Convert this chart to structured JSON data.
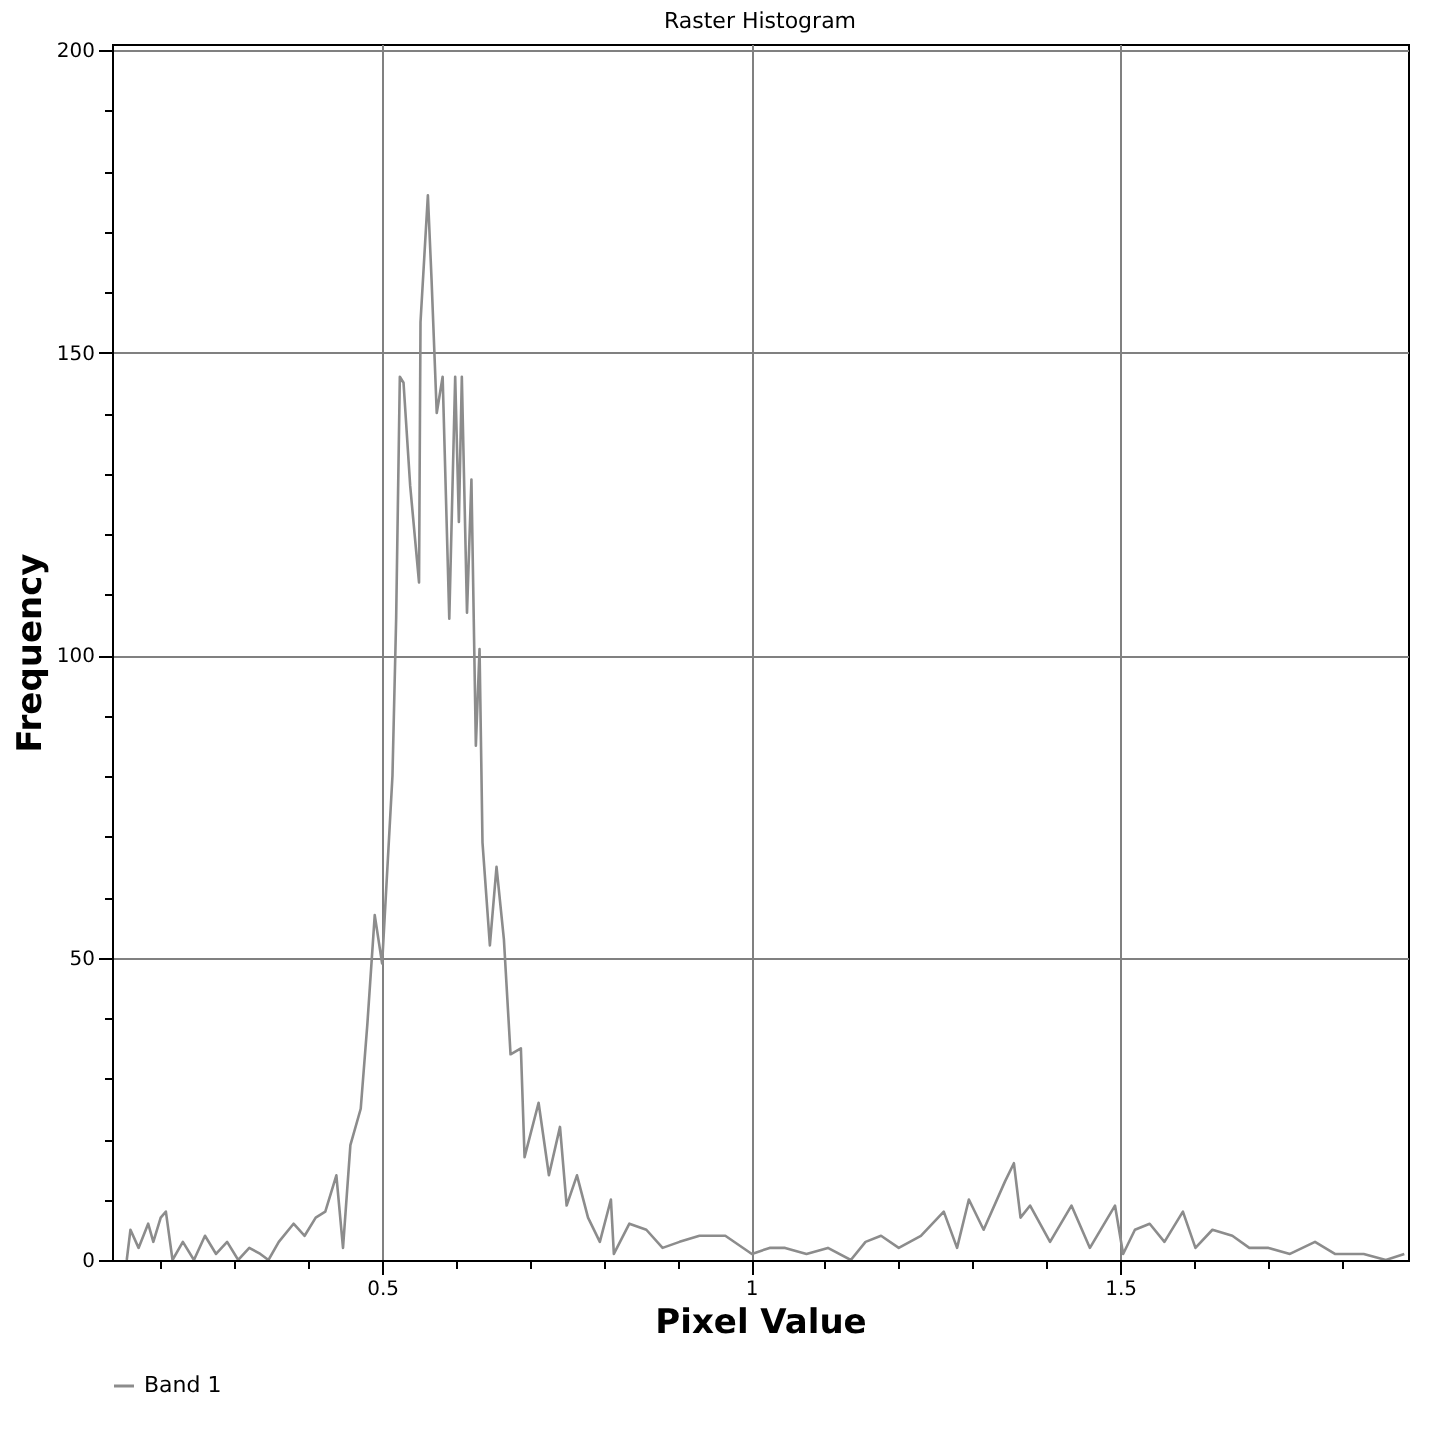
{
  "chart_data": {
    "type": "line",
    "title": "Raster Histogram",
    "xlabel": "Pixel Value",
    "ylabel": "Frequency",
    "x": [
      0.154,
      0.159,
      0.17,
      0.183,
      0.19,
      0.2,
      0.207,
      0.216,
      0.23,
      0.245,
      0.26,
      0.275,
      0.29,
      0.305,
      0.32,
      0.335,
      0.346,
      0.36,
      0.38,
      0.395,
      0.41,
      0.423,
      0.438,
      0.447,
      0.457,
      0.471,
      0.48,
      0.49,
      0.5,
      0.514,
      0.519,
      0.524,
      0.529,
      0.538,
      0.55,
      0.552,
      0.562,
      0.567,
      0.574,
      0.582,
      0.591,
      0.599,
      0.604,
      0.608,
      0.615,
      0.621,
      0.627,
      0.632,
      0.636,
      0.646,
      0.655,
      0.665,
      0.674,
      0.688,
      0.693,
      0.712,
      0.726,
      0.741,
      0.75,
      0.764,
      0.779,
      0.795,
      0.81,
      0.814,
      0.835,
      0.858,
      0.88,
      0.903,
      0.93,
      0.965,
      1.001,
      1.025,
      1.046,
      1.075,
      1.104,
      1.135,
      1.155,
      1.176,
      1.2,
      1.23,
      1.261,
      1.279,
      1.295,
      1.315,
      1.344,
      1.356,
      1.365,
      1.378,
      1.405,
      1.434,
      1.459,
      1.493,
      1.504,
      1.52,
      1.54,
      1.56,
      1.585,
      1.602,
      1.625,
      1.652,
      1.675,
      1.701,
      1.73,
      1.764,
      1.791,
      1.83,
      1.86,
      1.885
    ],
    "series": [
      {
        "name": "Band 1",
        "color": "#8c8c8c",
        "values": [
          0,
          5,
          2,
          6,
          3,
          7,
          8,
          0,
          3,
          0,
          4,
          1,
          3,
          0,
          2,
          1,
          0,
          3,
          6,
          4,
          7,
          8,
          14,
          2,
          19,
          25,
          39,
          57,
          49,
          80,
          106,
          146,
          145,
          128,
          112,
          155,
          176,
          162,
          140,
          146,
          106,
          146,
          122,
          146,
          107,
          129,
          85,
          101,
          69,
          52,
          65,
          53,
          34,
          35,
          17,
          26,
          14,
          22,
          9,
          14,
          7,
          3,
          10,
          1,
          6,
          5,
          2,
          3,
          4,
          4,
          1,
          2,
          2,
          1,
          2,
          0,
          3,
          4,
          2,
          4,
          8,
          2,
          10,
          5,
          13,
          16,
          7,
          9,
          3,
          9,
          2,
          9,
          1,
          5,
          6,
          3,
          8,
          2,
          5,
          4,
          2,
          2,
          1,
          3,
          1,
          1,
          0,
          1
        ]
      }
    ],
    "xlim": [
      0.134,
      1.89
    ],
    "ylim": [
      0,
      201
    ],
    "xticks": [
      {
        "value": 0.2,
        "label": null
      },
      {
        "value": 0.3,
        "label": null
      },
      {
        "value": 0.4,
        "label": null
      },
      0.5,
      {
        "value": 0.6,
        "label": null
      },
      {
        "value": 0.7,
        "label": null
      },
      {
        "value": 0.8,
        "label": null
      },
      {
        "value": 0.9,
        "label": null
      },
      1,
      {
        "value": 1.1,
        "label": null
      },
      {
        "value": 1.2,
        "label": null
      },
      {
        "value": 1.3,
        "label": null
      },
      {
        "value": 1.4,
        "label": null
      },
      1.5,
      {
        "value": 1.6,
        "label": null
      },
      {
        "value": 1.7,
        "label": null
      },
      {
        "value": 1.8,
        "label": null
      }
    ],
    "yticks": [
      0,
      {
        "value": 10,
        "label": null
      },
      {
        "value": 20,
        "label": null
      },
      {
        "value": 30,
        "label": null
      },
      {
        "value": 40,
        "label": null
      },
      50,
      {
        "value": 60,
        "label": null
      },
      {
        "value": 70,
        "label": null
      },
      {
        "value": 80,
        "label": null
      },
      {
        "value": 90,
        "label": null
      },
      100,
      {
        "value": 110,
        "label": null
      },
      {
        "value": 120,
        "label": null
      },
      {
        "value": 130,
        "label": null
      },
      {
        "value": 140,
        "label": null
      },
      150,
      {
        "value": 160,
        "label": null
      },
      {
        "value": 170,
        "label": null
      },
      {
        "value": 180,
        "label": null
      },
      {
        "value": 190,
        "label": null
      },
      200
    ],
    "grid": true,
    "legend": "bottom",
    "marker": "none",
    "line_style": "solid"
  }
}
